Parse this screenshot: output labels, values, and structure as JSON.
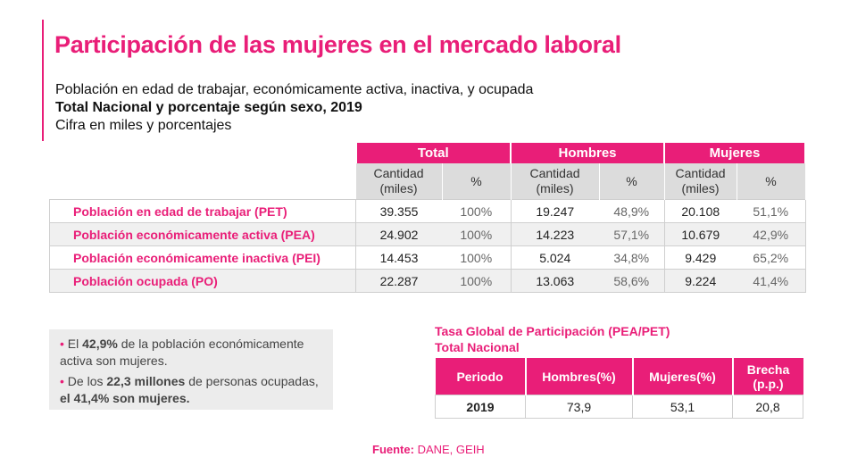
{
  "title": "Participación de las mujeres en el mercado laboral",
  "subtitle1": "Población en edad de trabajar, económicamente activa, inactiva, y ocupada",
  "subtitle2": "Total Nacional y porcentaje según sexo, 2019",
  "subtitle3": "Cifra en miles y porcentajes",
  "main_table": {
    "groups": [
      "Total",
      "Hombres",
      "Mujeres"
    ],
    "sub_headers": {
      "cantidad_line1": "Cantidad",
      "cantidad_line2": "(miles)",
      "pct": "%"
    },
    "rows": [
      {
        "label": "Población en edad de trabajar (PET)",
        "total_q": "39.355",
        "total_p": "100%",
        "h_q": "19.247",
        "h_p": "48,9%",
        "m_q": "20.108",
        "m_p": "51,1%"
      },
      {
        "label": "Población económicamente activa (PEA)",
        "total_q": "24.902",
        "total_p": "100%",
        "h_q": "14.223",
        "h_p": "57,1%",
        "m_q": "10.679",
        "m_p": "42,9%"
      },
      {
        "label": "Población económicamente inactiva (PEI)",
        "total_q": "14.453",
        "total_p": "100%",
        "h_q": "5.024",
        "h_p": "34,8%",
        "m_q": "9.429",
        "m_p": "65,2%"
      },
      {
        "label": "Población ocupada (PO)",
        "total_q": "22.287",
        "total_p": "100%",
        "h_q": "13.063",
        "h_p": "58,6%",
        "m_q": "9.224",
        "m_p": "41,4%"
      }
    ]
  },
  "notes": {
    "n1_pre": "El ",
    "n1_bold": "42,9%",
    "n1_post": " de la población económicamente activa son mujeres.",
    "n2_pre": "De los ",
    "n2_bold1": "22,3 millones",
    "n2_mid": " de personas ocupadas, ",
    "n2_bold2": "el 41,4% son mujeres."
  },
  "tasa": {
    "title1": "Tasa Global de Participación (PEA/PET)",
    "title2": "Total Nacional",
    "headers": [
      "Periodo",
      "Hombres(%)",
      "Mujeres(%)",
      "Brecha",
      "(p.p.)"
    ],
    "row": [
      "2019",
      "73,9",
      "53,1",
      "20,8"
    ]
  },
  "source": {
    "label": "Fuente:",
    "value": " DANE, GEIH"
  },
  "colors": {
    "accent": "#e91e78",
    "subheader_bg": "#dcdcdc",
    "notes_bg": "#ececec"
  }
}
